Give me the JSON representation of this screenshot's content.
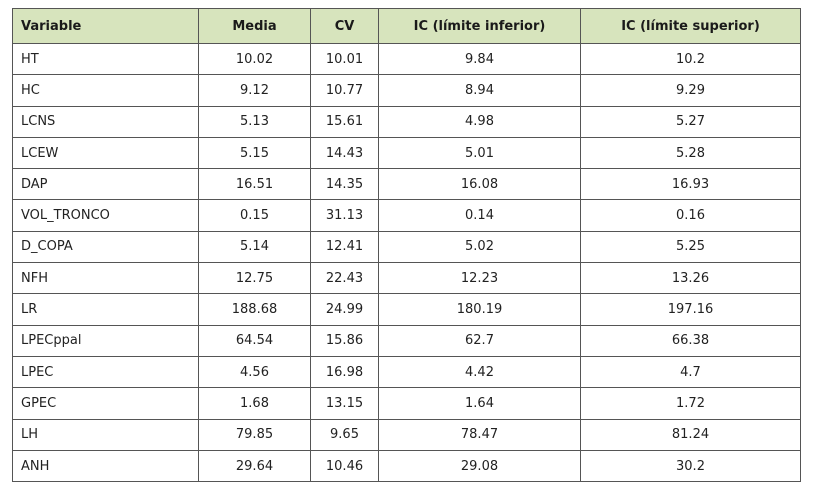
{
  "table": {
    "header": [
      "Variable",
      "Media",
      "CV",
      "IC (límite inferior)",
      "IC (límite superior)"
    ],
    "rows": [
      [
        "HT",
        "10.02",
        "10.01",
        "9.84",
        "10.2"
      ],
      [
        "HC",
        "9.12",
        "10.77",
        "8.94",
        "9.29"
      ],
      [
        "LCNS",
        "5.13",
        "15.61",
        "4.98",
        "5.27"
      ],
      [
        "LCEW",
        "5.15",
        "14.43",
        "5.01",
        "5.28"
      ],
      [
        "DAP",
        "16.51",
        "14.35",
        "16.08",
        "16.93"
      ],
      [
        "VOL_TRONCO",
        "0.15",
        "31.13",
        "0.14",
        "0.16"
      ],
      [
        "D_COPA",
        "5.14",
        "12.41",
        "5.02",
        "5.25"
      ],
      [
        "NFH",
        "12.75",
        "22.43",
        "12.23",
        "13.26"
      ],
      [
        "LR",
        "188.68",
        "24.99",
        "180.19",
        "197.16"
      ],
      [
        "LPECppal",
        "64.54",
        "15.86",
        "62.7",
        "66.38"
      ],
      [
        "LPEC",
        "4.56",
        "16.98",
        "4.42",
        "4.7"
      ],
      [
        "GPEC",
        "1.68",
        "13.15",
        "1.64",
        "1.72"
      ],
      [
        "LH",
        "79.85",
        "9.65",
        "78.47",
        "81.24"
      ],
      [
        "ANH",
        "29.64",
        "10.46",
        "29.08",
        "30.2"
      ]
    ]
  }
}
